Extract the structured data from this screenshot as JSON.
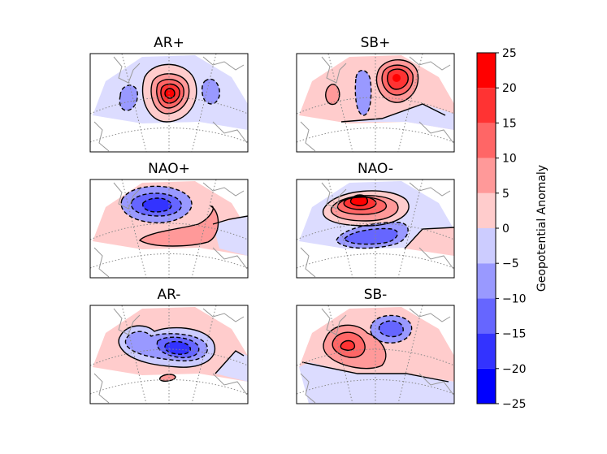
{
  "chart_data": {
    "type": "heatmap",
    "description_kind": "filled-contour geopotential anomaly maps",
    "panels": [
      {
        "id": "ar-plus",
        "title": "AR+"
      },
      {
        "id": "sb-plus",
        "title": "SB+"
      },
      {
        "id": "nao-plus",
        "title": "NAO+"
      },
      {
        "id": "nao-minus",
        "title": "NAO-"
      },
      {
        "id": "ar-minus",
        "title": "AR-"
      },
      {
        "id": "sb-minus",
        "title": "SB-"
      }
    ],
    "colorbar": {
      "label": "Geopotential Anomaly",
      "range": [
        -25,
        25
      ],
      "levels": [
        -25,
        -20,
        -15,
        -10,
        -5,
        0,
        5,
        10,
        15,
        20,
        25
      ],
      "tick_labels": [
        "−25",
        "−20",
        "−15",
        "−10",
        "−5",
        "0",
        "5",
        "10",
        "15",
        "20",
        "25"
      ],
      "colors": [
        "#0000ff",
        "#3333ff",
        "#6666ff",
        "#9999ff",
        "#ccccff",
        "#ffcccc",
        "#ff9999",
        "#ff6666",
        "#ff3333",
        "#ff0000"
      ]
    }
  }
}
